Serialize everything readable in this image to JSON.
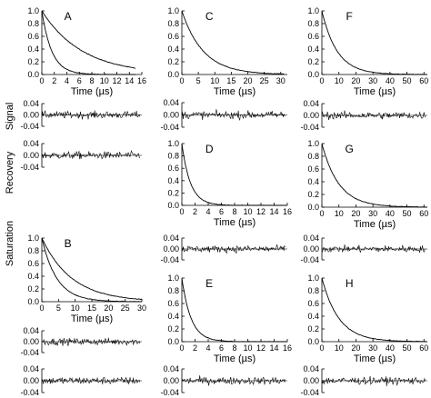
{
  "figure": {
    "ylabel_left": "Saturation",
    "ylabel_middle": "Recovery",
    "ylabel_right": "Signal"
  },
  "chart_data": [
    {
      "type": "line",
      "panel": "A",
      "xlabel": "Time (µs)",
      "xlim": [
        0,
        16
      ],
      "ylim": [
        0,
        1.0
      ],
      "xticks": [
        "0",
        "2",
        "4",
        "6",
        "8",
        "10",
        "12",
        "14",
        "16"
      ],
      "yticks": [
        "0.0",
        "0.2",
        "0.4",
        "0.6",
        "0.8",
        "1.0"
      ],
      "series": [
        {
          "tau": 6.5,
          "x_end": 15
        },
        {
          "tau": 1.6,
          "x_end": 15
        }
      ]
    },
    {
      "type": "line",
      "panel": "A",
      "role": "residuals",
      "xlim": [
        0,
        16
      ],
      "ylim": [
        -0.04,
        0.04
      ],
      "yticks": [
        "0.04",
        "0.00",
        "-0.04"
      ]
    },
    {
      "type": "line",
      "panel": "A",
      "role": "residuals",
      "xlim": [
        0,
        16
      ],
      "ylim": [
        -0.04,
        0.04
      ],
      "yticks": [
        "0.04",
        "0.00",
        "-0.04"
      ]
    },
    {
      "type": "line",
      "panel": "B",
      "xlabel": "Time (µs)",
      "xlim": [
        0,
        30
      ],
      "ylim": [
        0,
        1.0
      ],
      "xticks": [
        "0",
        "5",
        "10",
        "15",
        "20",
        "25",
        "30"
      ],
      "yticks": [
        "0.0",
        "0.2",
        "0.4",
        "0.6",
        "0.8",
        "1.0"
      ],
      "series": [
        {
          "tau": 9,
          "x_end": 30
        },
        {
          "tau": 4.5,
          "x_end": 30
        }
      ]
    },
    {
      "type": "line",
      "panel": "B",
      "role": "residuals",
      "xlim": [
        0,
        30
      ],
      "ylim": [
        -0.04,
        0.04
      ],
      "yticks": [
        "0.04",
        "0.00",
        "-0.04"
      ]
    },
    {
      "type": "line",
      "panel": "B",
      "role": "residuals",
      "xlim": [
        0,
        30
      ],
      "ylim": [
        -0.04,
        0.04
      ],
      "yticks": [
        "0.04",
        "0.00",
        "-0.04"
      ]
    },
    {
      "type": "line",
      "panel": "C",
      "xlabel": "Time (µs)",
      "xlim": [
        0,
        32
      ],
      "ylim": [
        0,
        1.0
      ],
      "xticks": [
        "0",
        "5",
        "10",
        "15",
        "20",
        "25",
        "30"
      ],
      "yticks": [
        "0.0",
        "0.2",
        "0.4",
        "0.6",
        "0.8",
        "1.0"
      ],
      "series": [
        {
          "tau": 6.5,
          "x_end": 31
        }
      ]
    },
    {
      "type": "line",
      "panel": "C",
      "role": "residuals",
      "xlim": [
        0,
        32
      ],
      "ylim": [
        -0.04,
        0.04
      ],
      "yticks": [
        "0.04",
        "0.00",
        "-0.04"
      ]
    },
    {
      "type": "line",
      "panel": "D",
      "xlabel": "Time (µs)",
      "xlim": [
        0,
        16
      ],
      "ylim": [
        0,
        1.0
      ],
      "xticks": [
        "0",
        "2",
        "4",
        "6",
        "8",
        "10",
        "12",
        "14",
        "16"
      ],
      "yticks": [
        "0.0",
        "0.2",
        "0.4",
        "0.6",
        "0.8",
        "1.0"
      ],
      "series": [
        {
          "tau": 1.3,
          "x_end": 16
        }
      ]
    },
    {
      "type": "line",
      "panel": "D",
      "role": "residuals",
      "xlim": [
        0,
        16
      ],
      "ylim": [
        -0.04,
        0.04
      ],
      "yticks": [
        "0.04",
        "0.00",
        "-0.04"
      ]
    },
    {
      "type": "line",
      "panel": "E",
      "xlabel": "Time (µs)",
      "xlim": [
        0,
        16
      ],
      "ylim": [
        0,
        1.0
      ],
      "xticks": [
        "0",
        "2",
        "4",
        "6",
        "8",
        "10",
        "12",
        "14",
        "16"
      ],
      "yticks": [
        "0.0",
        "0.2",
        "0.4",
        "0.6",
        "0.8",
        "1.0"
      ],
      "series": [
        {
          "tau": 1.4,
          "x_end": 16
        }
      ]
    },
    {
      "type": "line",
      "panel": "E",
      "role": "residuals",
      "xlim": [
        0,
        16
      ],
      "ylim": [
        -0.04,
        0.04
      ],
      "yticks": [
        "0.04",
        "0.00",
        "-0.04"
      ]
    },
    {
      "type": "line",
      "panel": "F",
      "xlabel": "Time (µs)",
      "xlim": [
        0,
        62
      ],
      "ylim": [
        0,
        1.0
      ],
      "xticks": [
        "0",
        "10",
        "20",
        "30",
        "40",
        "50",
        "60"
      ],
      "yticks": [
        "0.0",
        "0.2",
        "0.4",
        "0.6",
        "0.8",
        "1.0"
      ],
      "series": [
        {
          "tau": 9,
          "x_end": 62
        }
      ]
    },
    {
      "type": "line",
      "panel": "F",
      "role": "residuals",
      "xlim": [
        0,
        62
      ],
      "ylim": [
        -0.04,
        0.04
      ],
      "yticks": [
        "0.04",
        "0.00",
        "-0.04"
      ]
    },
    {
      "type": "line",
      "panel": "G",
      "xlabel": "Time (µs)",
      "xlim": [
        0,
        62
      ],
      "ylim": [
        0,
        1.0
      ],
      "xticks": [
        "0",
        "10",
        "20",
        "30",
        "40",
        "50",
        "60"
      ],
      "yticks": [
        "0.0",
        "0.2",
        "0.4",
        "0.6",
        "0.8",
        "1.0"
      ],
      "series": [
        {
          "tau": 10,
          "x_end": 62
        }
      ]
    },
    {
      "type": "line",
      "panel": "G",
      "role": "residuals",
      "xlim": [
        0,
        62
      ],
      "ylim": [
        -0.04,
        0.04
      ],
      "yticks": [
        "0.04",
        "0.00",
        "-0.04"
      ]
    },
    {
      "type": "line",
      "panel": "H",
      "xlabel": "Time (µs)",
      "xlim": [
        0,
        62
      ],
      "ylim": [
        0,
        1.0
      ],
      "xticks": [
        "0",
        "10",
        "20",
        "30",
        "40",
        "50",
        "60"
      ],
      "yticks": [
        "0.0",
        "0.2",
        "0.4",
        "0.6",
        "0.8",
        "1.0"
      ],
      "series": [
        {
          "tau": 10,
          "x_end": 62
        }
      ]
    },
    {
      "type": "line",
      "panel": "H",
      "role": "residuals",
      "xlim": [
        0,
        62
      ],
      "ylim": [
        -0.04,
        0.04
      ],
      "yticks": [
        "0.04",
        "0.00",
        "-0.04"
      ]
    }
  ]
}
